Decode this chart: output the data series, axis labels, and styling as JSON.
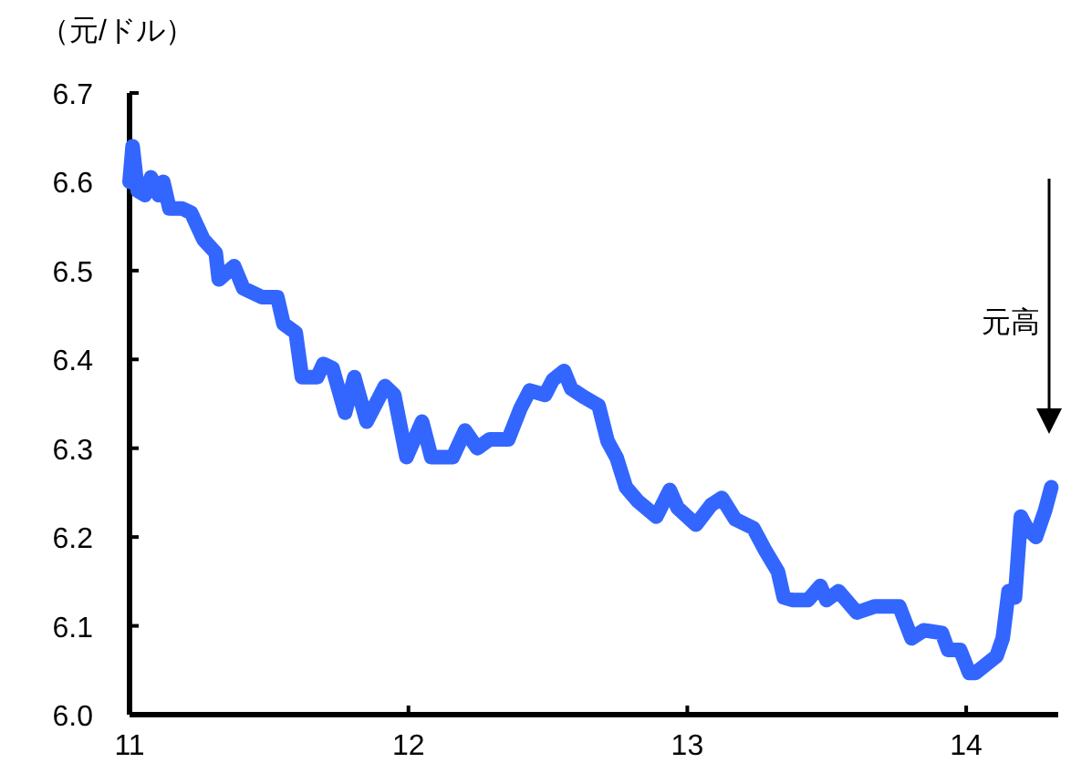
{
  "chart_data": {
    "type": "line",
    "ylabel": "（元/ドル）",
    "annotations": [
      "元高"
    ],
    "xlim": [
      2011,
      2014.33
    ],
    "ylim": [
      6.0,
      6.7
    ],
    "xticks": [
      {
        "value": 2011,
        "label": "11"
      },
      {
        "value": 2012,
        "label": "12"
      },
      {
        "value": 2013,
        "label": "13"
      },
      {
        "value": 2014,
        "label": "14"
      }
    ],
    "yticks": [
      {
        "value": 6.0,
        "label": "6.0"
      },
      6.1,
      6.2,
      6.3,
      6.4,
      6.5,
      6.6,
      6.7
    ],
    "x": [
      2011.0,
      2011.011,
      2011.029,
      2011.055,
      2011.077,
      2011.104,
      2011.121,
      2011.143,
      2011.188,
      2011.221,
      2011.265,
      2011.309,
      2011.32,
      2011.375,
      2011.408,
      2011.475,
      2011.53,
      2011.552,
      2011.596,
      2011.618,
      2011.673,
      2011.695,
      2011.728,
      2011.773,
      2011.806,
      2011.85,
      2011.916,
      2011.949,
      2011.993,
      2012.049,
      2012.082,
      2012.159,
      2012.203,
      2012.247,
      2012.291,
      2012.358,
      2012.402,
      2012.435,
      2012.49,
      2012.518,
      2012.558,
      2012.584,
      2012.627,
      2012.682,
      2012.714,
      2012.747,
      2012.78,
      2012.824,
      2012.889,
      2012.937,
      2012.965,
      2013.031,
      2013.085,
      2013.124,
      2013.172,
      2013.237,
      2013.281,
      2013.325,
      2013.346,
      2013.379,
      2013.433,
      2013.477,
      2013.499,
      2013.542,
      2013.608,
      2013.673,
      2013.76,
      2013.804,
      2013.848,
      2013.913,
      2013.935,
      2013.978,
      2014.011,
      2014.033,
      2014.109,
      2014.131,
      2014.152,
      2014.175,
      2014.196,
      2014.218,
      2014.25,
      2014.283,
      2014.305
    ],
    "series": [
      {
        "color": "#3366ff",
        "values": [
          6.6,
          6.64,
          6.59,
          6.585,
          6.605,
          6.585,
          6.6,
          6.57,
          6.57,
          6.565,
          6.535,
          6.52,
          6.49,
          6.505,
          6.48,
          6.47,
          6.47,
          6.44,
          6.43,
          6.38,
          6.38,
          6.395,
          6.39,
          6.34,
          6.38,
          6.33,
          6.37,
          6.36,
          6.29,
          6.33,
          6.29,
          6.29,
          6.32,
          6.3,
          6.31,
          6.31,
          6.345,
          6.365,
          6.36,
          6.377,
          6.387,
          6.367,
          6.358,
          6.348,
          6.308,
          6.289,
          6.256,
          6.24,
          6.223,
          6.253,
          6.233,
          6.214,
          6.236,
          6.244,
          6.22,
          6.21,
          6.184,
          6.161,
          6.132,
          6.129,
          6.129,
          6.145,
          6.129,
          6.139,
          6.115,
          6.122,
          6.122,
          6.086,
          6.095,
          6.092,
          6.073,
          6.073,
          6.047,
          6.047,
          6.066,
          6.086,
          6.139,
          6.132,
          6.223,
          6.21,
          6.2,
          6.23,
          6.256
        ]
      }
    ]
  }
}
